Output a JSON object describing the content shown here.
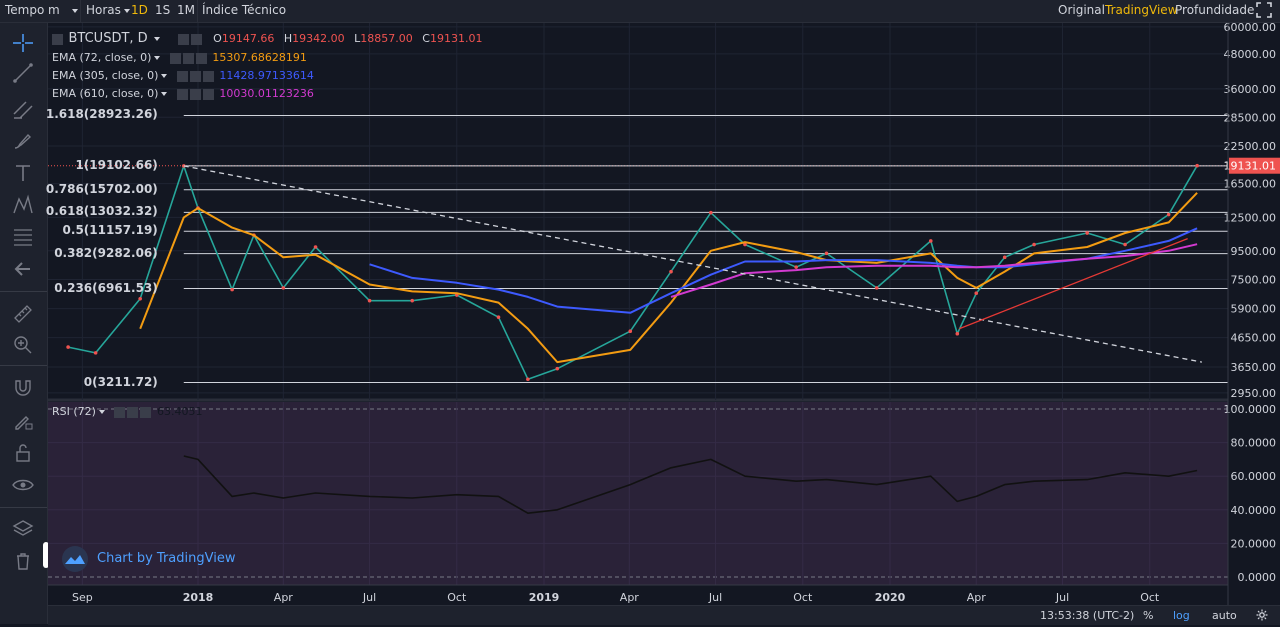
{
  "topbar": {
    "tempo": "Tempo",
    "interval": "m",
    "horas": "Horas",
    "periods": [
      "1D",
      "1S",
      "1M"
    ],
    "active_period": "1D",
    "indicators": "Índice Técnico",
    "view_original": "Original",
    "view_tradingview": "TradingView",
    "view_depth": "Profundidade"
  },
  "legend": {
    "symbol": "BTCUSDT, D",
    "ohlc": [
      {
        "label": "O",
        "value": "19147.66"
      },
      {
        "label": "H",
        "value": "19342.00"
      },
      {
        "label": "L",
        "value": "18857.00"
      },
      {
        "label": "C",
        "value": "19131.01"
      }
    ],
    "ema": [
      {
        "name": "EMA (72, close, 0)",
        "value": "15307.68628191",
        "color": "#f39c12"
      },
      {
        "name": "EMA (305, close, 0)",
        "value": "11428.97133614",
        "color": "#3d5afe"
      },
      {
        "name": "EMA (610, close, 0)",
        "value": "10030.01123236",
        "color": "#d23ad0"
      }
    ],
    "rsi": {
      "name": "RSI (72)",
      "value": "63.4051"
    }
  },
  "price_axis": {
    "ticks": [
      "60000.00",
      "48000.00",
      "36000.00",
      "28500.00",
      "22500.00",
      "16500.00",
      "12500.00",
      "9500.00",
      "7500.00",
      "5900.00",
      "4650.00",
      "3650.00",
      "2950.00"
    ],
    "last_price": "19131.01",
    "last_price_color": "#ef5350"
  },
  "rsi_axis": {
    "ticks": [
      "100.0000",
      "80.0000",
      "60.0000",
      "40.0000",
      "20.0000",
      "0.0000"
    ]
  },
  "time_axis": {
    "ticks": [
      "Sep",
      "2018",
      "Apr",
      "Jul",
      "Oct",
      "2019",
      "Apr",
      "Jul",
      "Oct",
      "2020",
      "Apr",
      "Jul",
      "Oct"
    ],
    "bold": [
      "2018",
      "2019",
      "2020"
    ]
  },
  "fib_levels": [
    {
      "label": "1.618(28923.26)"
    },
    {
      "label": "1(19102.66)"
    },
    {
      "label": "0.786(15702.00)"
    },
    {
      "label": "0.618(13032.32)"
    },
    {
      "label": "0.5(11157.19)"
    },
    {
      "label": "0.382(9282.06)"
    },
    {
      "label": "0.236(6961.53)"
    },
    {
      "label": "0(3211.72)"
    }
  ],
  "bottombar": {
    "time": "13:53:38 (UTC-2)",
    "percent": "%",
    "log": "log",
    "auto": "auto"
  },
  "watermark": "Chart by TradingView",
  "chart_data": {
    "type": "line",
    "title": "BTCUSDT, D",
    "y_scale": "log",
    "x_dates": [
      "2017-08-17",
      "2017-09-15",
      "2017-11-01",
      "2017-12-17",
      "2018-01-01",
      "2018-02-06",
      "2018-03-01",
      "2018-04-01",
      "2018-05-05",
      "2018-07-01",
      "2018-08-15",
      "2018-10-01",
      "2018-11-14",
      "2018-12-15",
      "2019-01-15",
      "2019-04-02",
      "2019-05-15",
      "2019-06-26",
      "2019-08-01",
      "2019-09-24",
      "2019-10-26",
      "2019-12-18",
      "2020-02-13",
      "2020-03-12",
      "2020-04-01",
      "2020-05-01",
      "2020-06-01",
      "2020-07-27",
      "2020-09-05",
      "2020-10-21",
      "2020-11-20"
    ],
    "series": [
      {
        "name": "BTCUSDT",
        "values": [
          4300,
          4100,
          6400,
          19102,
          13500,
          6900,
          10800,
          7000,
          9800,
          6300,
          6300,
          6600,
          5500,
          3300,
          3600,
          4900,
          8000,
          13000,
          10000,
          8300,
          9300,
          7000,
          10300,
          4800,
          6700,
          9000,
          10000,
          11000,
          10000,
          12800,
          19131
        ]
      },
      {
        "name": "EMA (72, close, 0)",
        "values": [
          null,
          null,
          5000,
          12500,
          13500,
          11500,
          10800,
          9000,
          9200,
          7200,
          6800,
          6700,
          6200,
          5000,
          3800,
          4200,
          6200,
          9500,
          10200,
          9400,
          8800,
          8600,
          9300,
          7600,
          7000,
          8000,
          9300,
          9800,
          11000,
          12000,
          15307
        ]
      },
      {
        "name": "EMA (305, close, 0)",
        "values": [
          null,
          null,
          null,
          null,
          null,
          null,
          null,
          null,
          null,
          8500,
          7600,
          7300,
          6900,
          6500,
          6000,
          5700,
          6700,
          7800,
          8700,
          8700,
          8800,
          8800,
          8600,
          8400,
          8300,
          8300,
          8500,
          8900,
          9500,
          10300,
          11428
        ]
      },
      {
        "name": "EMA (610, close, 0)",
        "values": [
          null,
          null,
          null,
          null,
          null,
          null,
          null,
          null,
          null,
          null,
          null,
          null,
          null,
          null,
          null,
          null,
          6500,
          7200,
          7900,
          8100,
          8300,
          8400,
          8400,
          8300,
          8300,
          8400,
          8600,
          8900,
          9100,
          9500,
          10030
        ]
      },
      {
        "name": "RSI (72)",
        "values": [
          null,
          null,
          null,
          72,
          70,
          48,
          50,
          47,
          50,
          48,
          47,
          49,
          48,
          38,
          40,
          55,
          65,
          70,
          60,
          57,
          58,
          55,
          60,
          45,
          48,
          55,
          57,
          58,
          62,
          60,
          63.4
        ]
      }
    ],
    "fibonacci": [
      {
        "ratio": 1.618,
        "price": 28923.26
      },
      {
        "ratio": 1,
        "price": 19102.66
      },
      {
        "ratio": 0.786,
        "price": 15702.0
      },
      {
        "ratio": 0.618,
        "price": 13032.32
      },
      {
        "ratio": 0.5,
        "price": 11157.19
      },
      {
        "ratio": 0.382,
        "price": 9282.06
      },
      {
        "ratio": 0.236,
        "price": 6961.53
      },
      {
        "ratio": 0,
        "price": 3211.72
      }
    ],
    "trendlines": [
      {
        "style": "dashed",
        "color": "#d1d4dc",
        "from": {
          "date": "2017-12-17",
          "price": 19102
        },
        "to": {
          "date": "2020-11-25",
          "price": 3800
        }
      },
      {
        "style": "solid",
        "color": "#e53935",
        "from": {
          "date": "2020-03-14",
          "price": 5000
        },
        "to": {
          "date": "2020-11-10",
          "price": 10500
        }
      }
    ],
    "rsi_range": [
      0,
      100
    ],
    "price_range": [
      2950,
      60000
    ],
    "grid": true
  }
}
